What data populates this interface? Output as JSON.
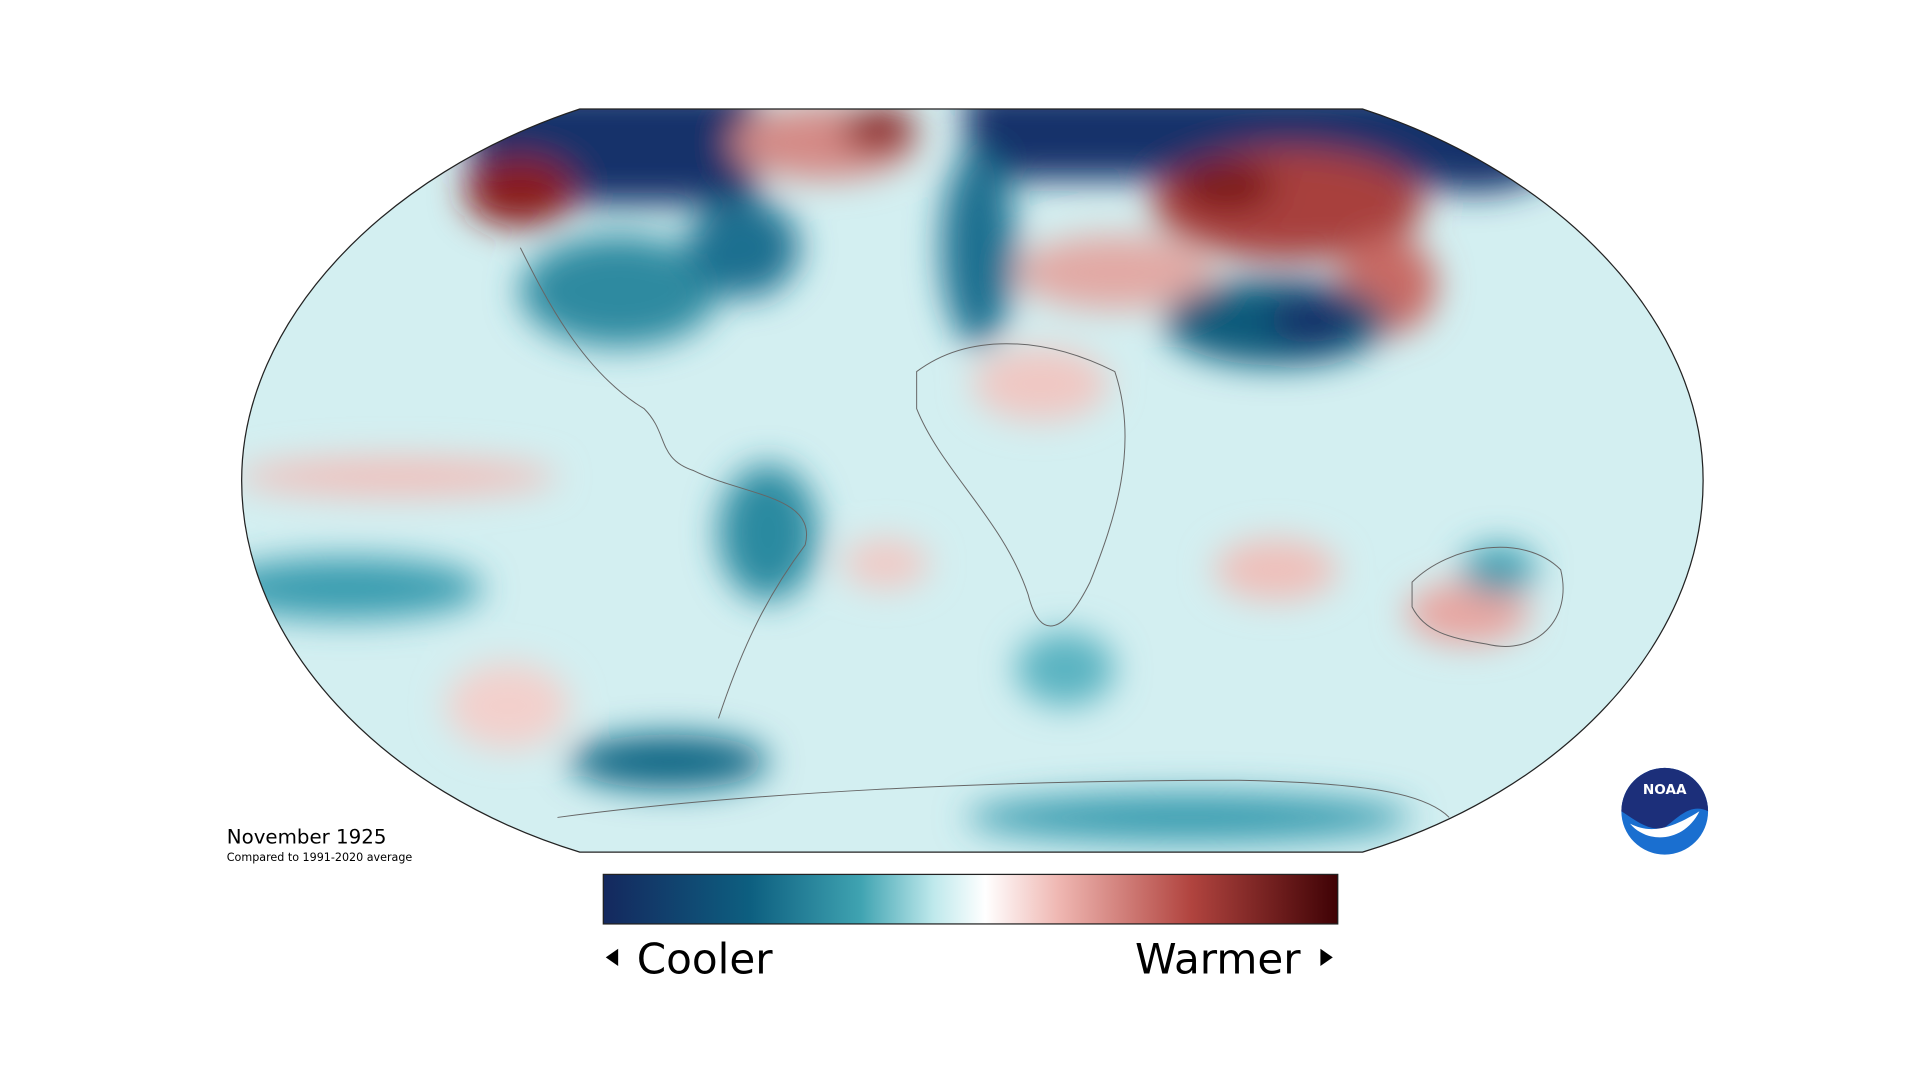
{
  "map": {
    "title": "November 1925",
    "subtitle": "Compared to 1991-2020 average",
    "legend": {
      "low": "Cooler",
      "high": "Warmer"
    }
  },
  "logo": "NOAA"
}
